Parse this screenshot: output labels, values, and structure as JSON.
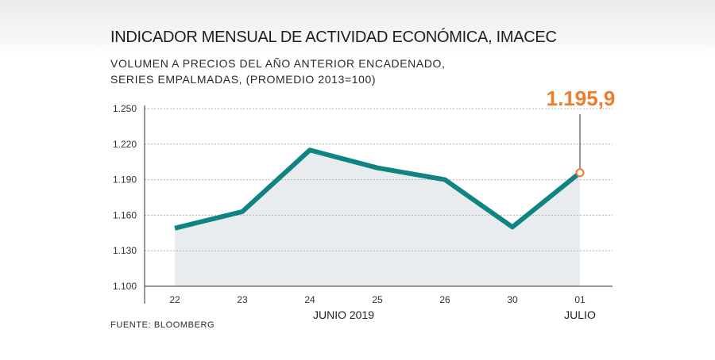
{
  "title": "INDICADOR MENSUAL DE ACTIVIDAD ECONÓMICA, IMACEC",
  "subtitle_line1": "VOLUMEN A PRECIOS DEL AÑO ANTERIOR ENCADENADO,",
  "subtitle_line2": "SERIES EMPALMADAS, (PROMEDIO 2013=100)",
  "source": "FUENTE: BLOOMBERG",
  "callout_label": "1.195,9",
  "colors": {
    "line": "#0f8482",
    "area": "#e9ecee",
    "callout": "#f07b2b",
    "grid": "#b5b5b5"
  },
  "chart_data": {
    "type": "line",
    "categories": [
      "22",
      "23",
      "24",
      "25",
      "26",
      "30",
      "01"
    ],
    "category_groups": [
      {
        "label": "JUNIO 2019",
        "from": 0,
        "to": 5
      },
      {
        "label": "JULIO",
        "from": 6,
        "to": 6
      }
    ],
    "values": [
      1149,
      1163,
      1215,
      1200,
      1190,
      1150,
      1195.9
    ],
    "yticks": [
      1100,
      1130,
      1160,
      1190,
      1220,
      1250
    ],
    "ytick_labels": [
      "1.100",
      "1.130",
      "1.160",
      "1.190",
      "1.220",
      "1.250"
    ],
    "ylim": [
      1100,
      1250
    ],
    "grid": true,
    "area_fill": true,
    "highlight_index": 6
  }
}
